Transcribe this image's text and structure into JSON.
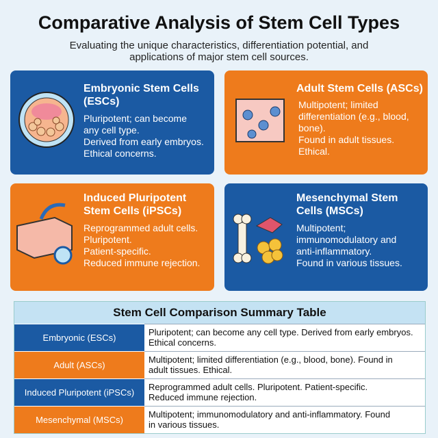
{
  "header": {
    "title": "Comparative Analysis of Stem Cell Types",
    "subtitle": [
      "Evaluating the unique characteristics, differentiation potential, and",
      "applications of major stem cell sources."
    ]
  },
  "cards": [
    {
      "title": [
        "Embryonic Stem Cells",
        "(ESCs)"
      ],
      "lines": [
        "Pluripotent; can become",
        "any cell type.",
        "Derived from early embryos.",
        "Ethical concerns."
      ]
    },
    {
      "title": [
        "Adult Stem Cells (ASCs)"
      ],
      "lines": [
        "Multipotent; limited",
        "differentiation (e.g., blood,",
        "bone).",
        "Found in adult tissues.",
        "Ethical."
      ]
    },
    {
      "title": [
        "Induced Pluripotent",
        "Stem Cells (iPSCs)"
      ],
      "lines": [
        "Reprogrammed adult cells.",
        "Pluripotent.",
        "Patient-specific.",
        "Reduced immune rejection."
      ]
    },
    {
      "title": [
        "Mesenchymal Stem",
        "Cells (MSCs)"
      ],
      "lines": [
        "Multipotent;",
        "immunomodulatory and",
        "anti-inflammatory.",
        "Found in various tissues."
      ]
    }
  ],
  "table": {
    "title": "Stem Cell Comparison Summary Table",
    "rows": [
      [
        "Embryonic (ESCs)",
        [
          "Pluripotent; can become any cell type. Derived from early embryos.",
          "Ethical concerns."
        ]
      ],
      [
        "Adult (ASCs)",
        [
          "Multipotent; limited differentiation (e.g., blood, bone). Found in",
          "adult tissues. Ethical."
        ]
      ],
      [
        "Induced Pluripotent (iPSCs)",
        [
          "Reprogrammed adult cells. Pluripotent. Patient-specific.",
          "Reduced immune rejection."
        ]
      ],
      [
        "Mesenchymal (MSCs)",
        [
          "Multipotent; immunomodulatory and anti-inflammatory. Found",
          "in various tissues."
        ]
      ]
    ]
  }
}
